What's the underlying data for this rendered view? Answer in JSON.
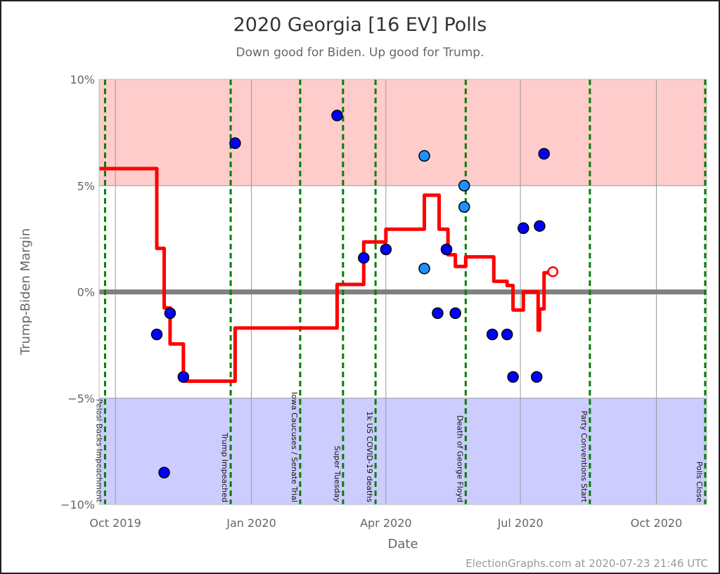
{
  "chart_data": {
    "type": "line",
    "title": "2020 Georgia [16 EV] Polls",
    "subtitle": "Down good for Biden. Up good for Trump.",
    "xlabel": "Date",
    "ylabel": "Trump-Biden Margin",
    "xlim": [
      "2019-09-20",
      "2020-11-04"
    ],
    "ylim": [
      -10,
      10
    ],
    "x_ticks": [
      {
        "date": "2019-10-01",
        "label": "Oct 2019"
      },
      {
        "date": "2020-01-01",
        "label": "Jan 2020"
      },
      {
        "date": "2020-04-01",
        "label": "Apr 2020"
      },
      {
        "date": "2020-07-01",
        "label": "Jul 2020"
      },
      {
        "date": "2020-10-01",
        "label": "Oct 2020"
      }
    ],
    "y_ticks": [
      {
        "value": 10,
        "label": "10%"
      },
      {
        "value": 5,
        "label": "5%"
      },
      {
        "value": 0,
        "label": "0%"
      },
      {
        "value": -5,
        "label": "-5%"
      },
      {
        "value": -10,
        "label": "-10%"
      }
    ],
    "grid": true,
    "bands": [
      {
        "from": 5,
        "to": 10,
        "color": "#ffcccc"
      },
      {
        "from": -10,
        "to": -5,
        "color": "#ccccff"
      }
    ],
    "colors": {
      "average": "#ff0000",
      "poll": "#0000ff",
      "poll_light": "#1e90ff",
      "event": "#008000",
      "zero": "#808080"
    },
    "events": [
      {
        "date": "2019-09-24",
        "label": "Pelosi Backs Impeachment"
      },
      {
        "date": "2019-12-18",
        "label": "Trump Impeached"
      },
      {
        "date": "2020-02-03",
        "label": "Iowa Caucuses / Senate Trial"
      },
      {
        "date": "2020-03-03",
        "label": "Super Tuesday"
      },
      {
        "date": "2020-03-25",
        "label": "1k US COVID-19 deaths"
      },
      {
        "date": "2020-05-25",
        "label": "Death of George Floyd"
      },
      {
        "date": "2020-08-17",
        "label": "Party Conventions Start"
      },
      {
        "date": "2020-11-03",
        "label": "Polls Close"
      }
    ],
    "polls": [
      {
        "date": "2019-10-29",
        "value": -2,
        "type": "dark"
      },
      {
        "date": "2019-11-03",
        "value": -8.5,
        "type": "dark"
      },
      {
        "date": "2019-11-07",
        "value": -1,
        "type": "dark"
      },
      {
        "date": "2019-11-16",
        "value": -4,
        "type": "dark"
      },
      {
        "date": "2019-12-21",
        "value": 7,
        "type": "dark"
      },
      {
        "date": "2020-02-28",
        "value": 8.3,
        "type": "dark"
      },
      {
        "date": "2020-03-17",
        "value": 1.6,
        "type": "dark"
      },
      {
        "date": "2020-04-01",
        "value": 2,
        "type": "dark"
      },
      {
        "date": "2020-04-27",
        "value": 6.4,
        "type": "light"
      },
      {
        "date": "2020-04-27",
        "value": 1.1,
        "type": "light"
      },
      {
        "date": "2020-05-06",
        "value": -1,
        "type": "dark"
      },
      {
        "date": "2020-05-12",
        "value": 2,
        "type": "dark"
      },
      {
        "date": "2020-05-18",
        "value": -1,
        "type": "dark"
      },
      {
        "date": "2020-05-24",
        "value": 5,
        "type": "light"
      },
      {
        "date": "2020-05-24",
        "value": 4,
        "type": "light"
      },
      {
        "date": "2020-06-12",
        "value": -2,
        "type": "dark"
      },
      {
        "date": "2020-06-22",
        "value": -2,
        "type": "dark"
      },
      {
        "date": "2020-06-26",
        "value": -4,
        "type": "dark"
      },
      {
        "date": "2020-07-03",
        "value": 3,
        "type": "dark"
      },
      {
        "date": "2020-07-12",
        "value": -4,
        "type": "dark"
      },
      {
        "date": "2020-07-14",
        "value": 3.1,
        "type": "dark"
      },
      {
        "date": "2020-07-17",
        "value": 6.5,
        "type": "dark"
      }
    ],
    "average_steps": [
      {
        "date": "2019-09-20",
        "value": 5.8
      },
      {
        "date": "2019-10-29",
        "value": 2.05
      },
      {
        "date": "2019-11-03",
        "value": -0.75
      },
      {
        "date": "2019-11-07",
        "value": -2.45
      },
      {
        "date": "2019-11-16",
        "value": -4.2
      },
      {
        "date": "2019-12-21",
        "value": -1.7
      },
      {
        "date": "2020-02-28",
        "value": 0.35
      },
      {
        "date": "2020-03-17",
        "value": 2.35
      },
      {
        "date": "2020-04-01",
        "value": 2.95
      },
      {
        "date": "2020-04-27",
        "value": 4.55
      },
      {
        "date": "2020-05-07",
        "value": 2.95
      },
      {
        "date": "2020-05-13",
        "value": 1.75
      },
      {
        "date": "2020-05-18",
        "value": 1.2
      },
      {
        "date": "2020-05-25",
        "value": 1.65
      },
      {
        "date": "2020-06-13",
        "value": 0.5
      },
      {
        "date": "2020-06-22",
        "value": 0.3
      },
      {
        "date": "2020-06-26",
        "value": -0.85
      },
      {
        "date": "2020-07-03",
        "value": 0
      },
      {
        "date": "2020-07-13",
        "value": -1.8
      },
      {
        "date": "2020-07-14",
        "value": -0.8
      },
      {
        "date": "2020-07-17",
        "value": 0.9
      },
      {
        "date": "2020-07-20",
        "value": 0.95
      }
    ],
    "current": {
      "date": "2020-07-23",
      "value": 0.95
    }
  },
  "footer": "ElectionGraphs.com at 2020-07-23 21:46 UTC"
}
